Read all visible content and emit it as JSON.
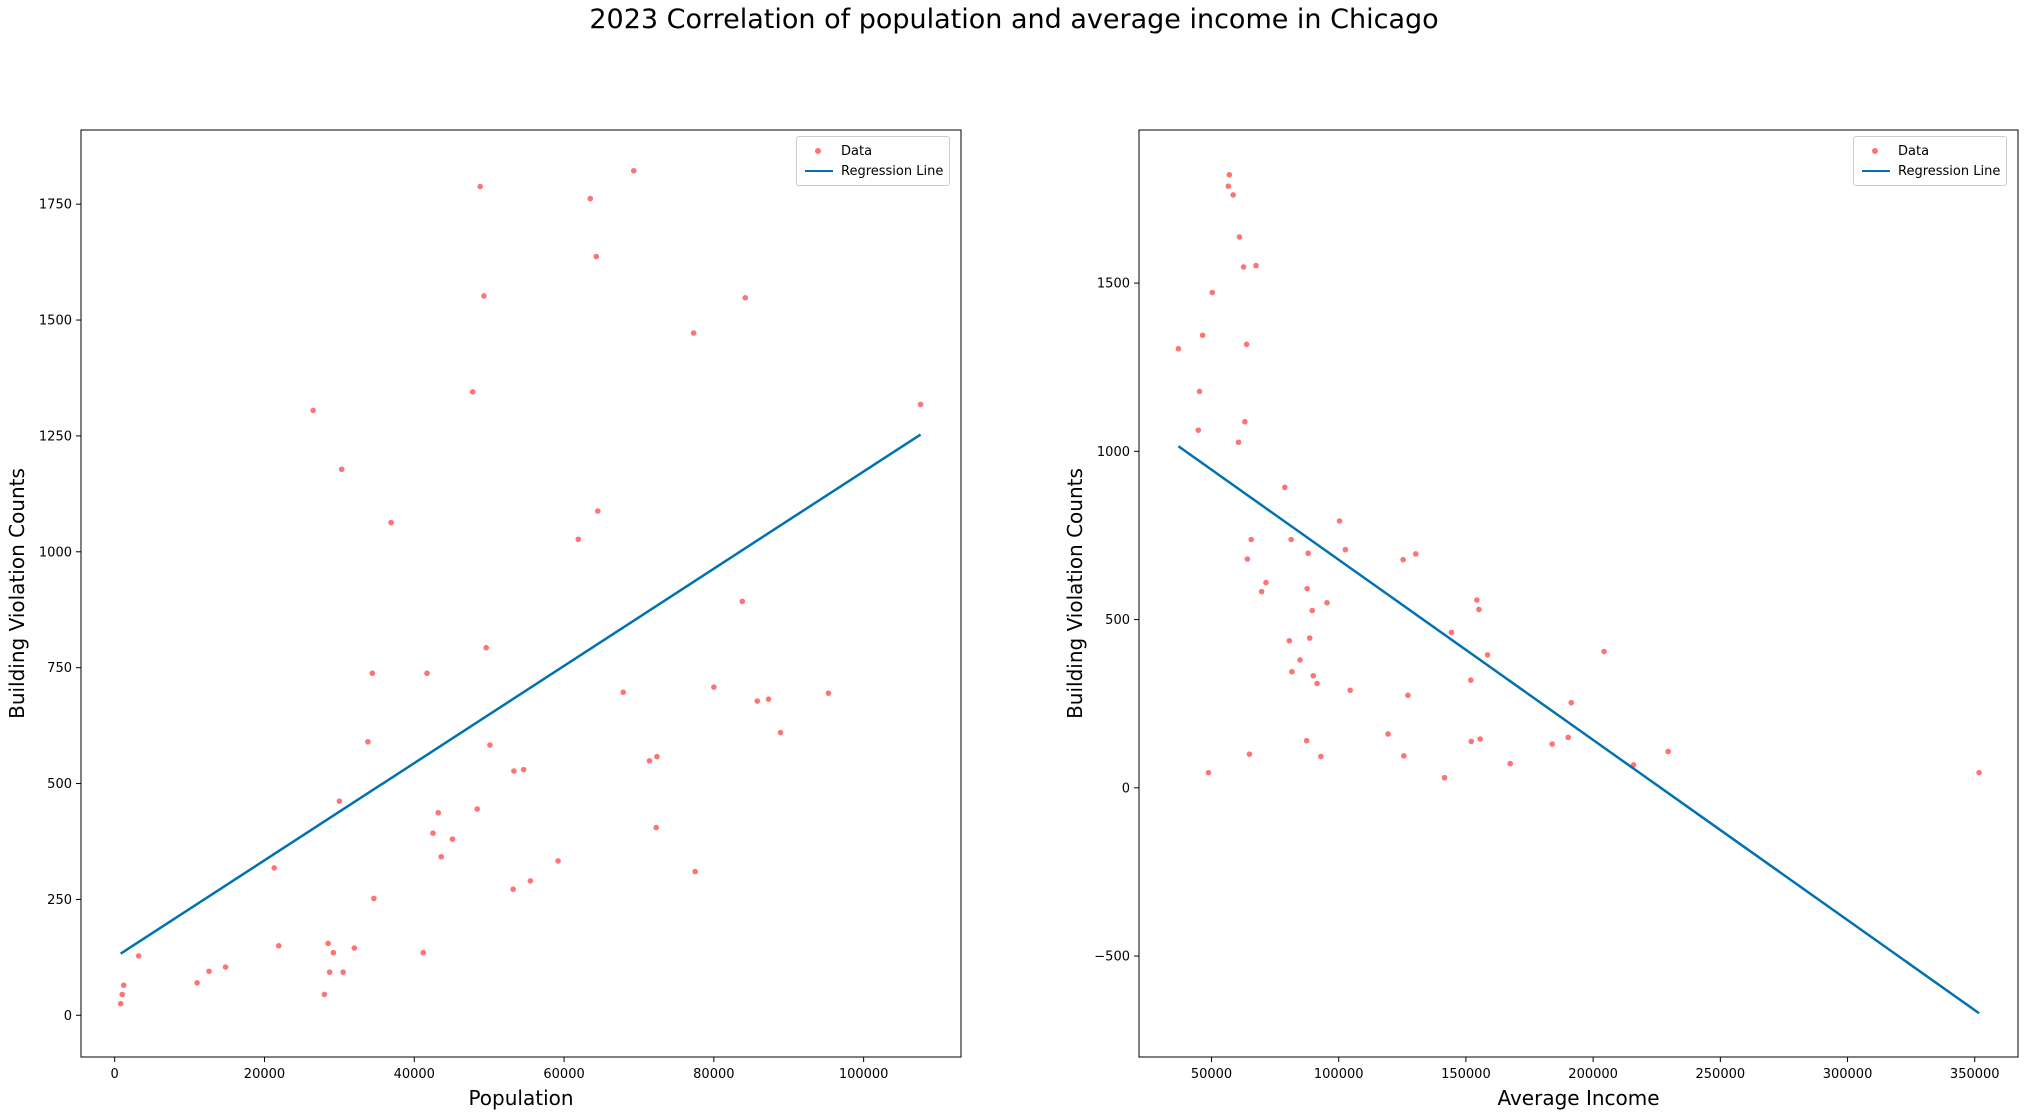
{
  "figure": {
    "title": "2023 Correlation of population and average income in Chicago"
  },
  "chart_data": [
    {
      "type": "scatter",
      "xlabel": "Population",
      "ylabel": "Building Violation Counts",
      "xlim": [
        -4500,
        113000
      ],
      "ylim": [
        -90,
        1910
      ],
      "xticks": [
        0,
        20000,
        40000,
        60000,
        80000,
        100000
      ],
      "yticks": [
        0,
        250,
        500,
        750,
        1000,
        1250,
        1500,
        1750
      ],
      "legend_position": "top-right",
      "series": [
        {
          "name": "Data",
          "kind": "scatter",
          "color": "#ff0000",
          "points": [
            [
              800,
              25
            ],
            [
              1000,
              45
            ],
            [
              1200,
              65
            ],
            [
              3200,
              128
            ],
            [
              11000,
              70
            ],
            [
              12600,
              95
            ],
            [
              14800,
              104
            ],
            [
              21300,
              318
            ],
            [
              21900,
              150
            ],
            [
              26500,
              1305
            ],
            [
              28000,
              45
            ],
            [
              28500,
              155
            ],
            [
              28700,
              93
            ],
            [
              29200,
              135
            ],
            [
              30000,
              462
            ],
            [
              30300,
              1178
            ],
            [
              30500,
              93
            ],
            [
              32000,
              145
            ],
            [
              33800,
              590
            ],
            [
              34400,
              738
            ],
            [
              34600,
              252
            ],
            [
              36900,
              1063
            ],
            [
              41200,
              135
            ],
            [
              41700,
              738
            ],
            [
              42500,
              393
            ],
            [
              43200,
              437
            ],
            [
              43600,
              342
            ],
            [
              45100,
              380
            ],
            [
              47800,
              1345
            ],
            [
              48400,
              445
            ],
            [
              48800,
              1788
            ],
            [
              49300,
              1552
            ],
            [
              49600,
              793
            ],
            [
              50100,
              583
            ],
            [
              53200,
              272
            ],
            [
              53300,
              527
            ],
            [
              54600,
              530
            ],
            [
              55500,
              290
            ],
            [
              59200,
              333
            ],
            [
              61900,
              1027
            ],
            [
              63500,
              1762
            ],
            [
              64300,
              1637
            ],
            [
              64500,
              1088
            ],
            [
              67900,
              697
            ],
            [
              69300,
              1822
            ],
            [
              71400,
              549
            ],
            [
              72300,
              405
            ],
            [
              72400,
              558
            ],
            [
              77300,
              1472
            ],
            [
              77500,
              310
            ],
            [
              80000,
              708
            ],
            [
              83800,
              893
            ],
            [
              84200,
              1548
            ],
            [
              85800,
              678
            ],
            [
              87300,
              682
            ],
            [
              88900,
              610
            ],
            [
              95300,
              695
            ],
            [
              107600,
              1318
            ]
          ]
        },
        {
          "name": "Regression Line",
          "kind": "line",
          "color": "#0072b2",
          "points": [
            [
              800,
              133
            ],
            [
              107600,
              1253
            ]
          ]
        }
      ]
    },
    {
      "type": "scatter",
      "xlabel": "Average Income",
      "ylabel": "Building Violation Counts",
      "xlim": [
        21500,
        367000
      ],
      "ylim": [
        -800,
        1955
      ],
      "xticks": [
        50000,
        100000,
        150000,
        200000,
        250000,
        300000,
        350000
      ],
      "yticks": [
        -500,
        0,
        500,
        1000,
        1500
      ],
      "legend_position": "top-right",
      "series": [
        {
          "name": "Data",
          "kind": "scatter",
          "color": "#ff0000",
          "points": [
            [
              37000,
              1305
            ],
            [
              44800,
              1063
            ],
            [
              45300,
              1178
            ],
            [
              46500,
              1345
            ],
            [
              48800,
              45
            ],
            [
              50300,
              1472
            ],
            [
              56600,
              1788
            ],
            [
              57000,
              1822
            ],
            [
              58500,
              1762
            ],
            [
              60600,
              1027
            ],
            [
              61000,
              1637
            ],
            [
              62600,
              1548
            ],
            [
              63100,
              1088
            ],
            [
              63800,
              1318
            ],
            [
              64100,
              680
            ],
            [
              64900,
              100
            ],
            [
              65600,
              738
            ],
            [
              67500,
              1552
            ],
            [
              69700,
              583
            ],
            [
              71400,
              610
            ],
            [
              78800,
              893
            ],
            [
              80600,
              437
            ],
            [
              81300,
              738
            ],
            [
              81600,
              345
            ],
            [
              84800,
              380
            ],
            [
              87400,
              140
            ],
            [
              87600,
              592
            ],
            [
              88000,
              697
            ],
            [
              88600,
              445
            ],
            [
              89600,
              527
            ],
            [
              90000,
              333
            ],
            [
              91500,
              310
            ],
            [
              93000,
              93
            ],
            [
              95400,
              550
            ],
            [
              100300,
              793
            ],
            [
              102600,
              708
            ],
            [
              104500,
              290
            ],
            [
              119400,
              160
            ],
            [
              125300,
              678
            ],
            [
              125600,
              95
            ],
            [
              127200,
              275
            ],
            [
              130300,
              695
            ],
            [
              141600,
              30
            ],
            [
              144300,
              462
            ],
            [
              151900,
              320
            ],
            [
              152100,
              138
            ],
            [
              154300,
              558
            ],
            [
              155100,
              530
            ],
            [
              155600,
              145
            ],
            [
              158500,
              395
            ],
            [
              167400,
              72
            ],
            [
              183900,
              130
            ],
            [
              190200,
              150
            ],
            [
              191400,
              253
            ],
            [
              204300,
              405
            ],
            [
              215900,
              68
            ],
            [
              229500,
              108
            ],
            [
              351700,
              45
            ]
          ]
        },
        {
          "name": "Regression Line",
          "kind": "line",
          "color": "#0072b2",
          "points": [
            [
              37000,
              1015
            ],
            [
              351700,
              -670
            ]
          ]
        }
      ]
    }
  ]
}
